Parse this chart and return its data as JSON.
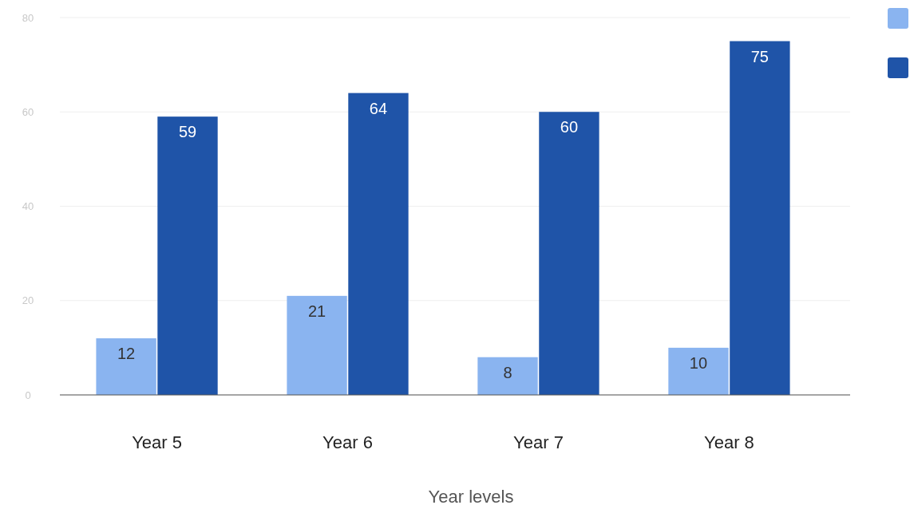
{
  "chart_data": {
    "type": "bar",
    "xlabel": "Year levels",
    "categories": [
      "Year 5",
      "Year 6",
      "Year 7",
      "Year 8"
    ],
    "series": [
      {
        "color": "#8ab4f0",
        "values": [
          12,
          21,
          8,
          10
        ]
      },
      {
        "color": "#1f54a8",
        "values": [
          59,
          64,
          60,
          75
        ]
      }
    ],
    "ylim": [
      0,
      80
    ],
    "yticks": [
      0,
      20,
      40,
      60,
      80
    ],
    "grid": "y",
    "data_labels": true
  }
}
